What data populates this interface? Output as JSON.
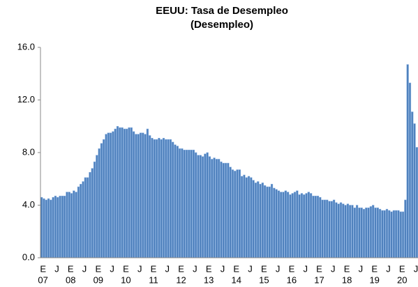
{
  "chart_data": {
    "type": "bar",
    "title": "EEUU: Tasa de Desempleo",
    "subtitle": "(Desempleo)",
    "categories": [
      "E",
      null,
      null,
      null,
      null,
      null,
      "J",
      null,
      null,
      null,
      null,
      null,
      "E",
      null,
      null,
      null,
      null,
      null,
      "J",
      null,
      null,
      null,
      null,
      null,
      "E",
      null,
      null,
      null,
      null,
      null,
      "J",
      null,
      null,
      null,
      null,
      null,
      "E",
      null,
      null,
      null,
      null,
      null,
      "J",
      null,
      null,
      null,
      null,
      null,
      "E",
      null,
      null,
      null,
      null,
      null,
      "J",
      null,
      null,
      null,
      null,
      null,
      "E",
      null,
      null,
      null,
      null,
      null,
      "J",
      null,
      null,
      null,
      null,
      null,
      "E",
      null,
      null,
      null,
      null,
      null,
      "J",
      null,
      null,
      null,
      null,
      null,
      "E",
      null,
      null,
      null,
      null,
      null,
      "J",
      null,
      null,
      null,
      null,
      null,
      "E",
      null,
      null,
      null,
      null,
      null,
      "J",
      null,
      null,
      null,
      null,
      null,
      "E",
      null,
      null,
      null,
      null,
      null,
      "J",
      null,
      null,
      null,
      null,
      null,
      "E",
      null,
      null,
      null,
      null,
      null,
      "J",
      null,
      null,
      null,
      null,
      null,
      "E",
      null,
      null,
      null,
      null,
      null,
      "J",
      null,
      null,
      null,
      null,
      null,
      "E",
      null,
      null,
      null,
      null,
      null,
      "J",
      null,
      null,
      null,
      null,
      null,
      "E",
      null,
      null,
      null,
      null,
      null,
      "J",
      null
    ],
    "years": [
      "07",
      null,
      null,
      null,
      null,
      null,
      null,
      null,
      null,
      null,
      null,
      null,
      "08",
      null,
      null,
      null,
      null,
      null,
      null,
      null,
      null,
      null,
      null,
      null,
      "09",
      null,
      null,
      null,
      null,
      null,
      null,
      null,
      null,
      null,
      null,
      null,
      "10",
      null,
      null,
      null,
      null,
      null,
      null,
      null,
      null,
      null,
      null,
      null,
      "11",
      null,
      null,
      null,
      null,
      null,
      null,
      null,
      null,
      null,
      null,
      null,
      "12",
      null,
      null,
      null,
      null,
      null,
      null,
      null,
      null,
      null,
      null,
      null,
      "13",
      null,
      null,
      null,
      null,
      null,
      null,
      null,
      null,
      null,
      null,
      null,
      "14",
      null,
      null,
      null,
      null,
      null,
      null,
      null,
      null,
      null,
      null,
      null,
      "15",
      null,
      null,
      null,
      null,
      null,
      null,
      null,
      null,
      null,
      null,
      null,
      "16",
      null,
      null,
      null,
      null,
      null,
      null,
      null,
      null,
      null,
      null,
      null,
      "17",
      null,
      null,
      null,
      null,
      null,
      null,
      null,
      null,
      null,
      null,
      null,
      "18",
      null,
      null,
      null,
      null,
      null,
      null,
      null,
      null,
      null,
      null,
      null,
      "19",
      null,
      null,
      null,
      null,
      null,
      null,
      null,
      null,
      null,
      null,
      null,
      "20",
      null,
      null,
      null,
      null,
      null,
      null,
      null
    ],
    "values": [
      4.6,
      4.5,
      4.4,
      4.5,
      4.4,
      4.6,
      4.7,
      4.6,
      4.7,
      4.7,
      4.7,
      5.0,
      5.0,
      4.9,
      5.1,
      5.0,
      5.4,
      5.6,
      5.8,
      6.1,
      6.1,
      6.5,
      6.8,
      7.3,
      7.8,
      8.3,
      8.7,
      9.0,
      9.4,
      9.5,
      9.5,
      9.6,
      9.8,
      10.0,
      9.9,
      9.9,
      9.8,
      9.8,
      9.9,
      9.9,
      9.6,
      9.4,
      9.4,
      9.5,
      9.5,
      9.4,
      9.8,
      9.3,
      9.1,
      9.0,
      9.0,
      9.1,
      9.0,
      9.1,
      9.0,
      9.0,
      9.0,
      8.8,
      8.6,
      8.5,
      8.3,
      8.3,
      8.2,
      8.2,
      8.2,
      8.2,
      8.2,
      8.0,
      7.8,
      7.8,
      7.7,
      7.9,
      8.0,
      7.7,
      7.5,
      7.6,
      7.5,
      7.5,
      7.3,
      7.2,
      7.2,
      7.2,
      6.9,
      6.7,
      6.6,
      6.7,
      6.7,
      6.2,
      6.3,
      6.1,
      6.2,
      6.1,
      5.9,
      5.7,
      5.8,
      5.6,
      5.7,
      5.5,
      5.4,
      5.4,
      5.6,
      5.3,
      5.2,
      5.1,
      5.0,
      5.0,
      5.1,
      5.0,
      4.8,
      4.9,
      5.0,
      5.1,
      4.8,
      4.9,
      4.8,
      4.9,
      5.0,
      4.9,
      4.7,
      4.7,
      4.7,
      4.6,
      4.4,
      4.4,
      4.4,
      4.3,
      4.3,
      4.4,
      4.2,
      4.1,
      4.2,
      4.1,
      4.0,
      4.1,
      4.0,
      4.0,
      3.8,
      4.0,
      3.8,
      3.8,
      3.7,
      3.8,
      3.8,
      3.9,
      4.0,
      3.8,
      3.8,
      3.7,
      3.6,
      3.6,
      3.7,
      3.6,
      3.5,
      3.6,
      3.6,
      3.6,
      3.5,
      3.5,
      4.4,
      14.7,
      13.3,
      11.1,
      10.2,
      8.4
    ],
    "color": "#4f81bd",
    "ylim": [
      0,
      16
    ],
    "yticks": [
      {
        "value": 0,
        "label": "0.0"
      },
      {
        "value": 4,
        "label": "4.0"
      },
      {
        "value": 8,
        "label": "8.0"
      },
      {
        "value": 12,
        "label": "12.0"
      },
      {
        "value": 16,
        "label": "16.0"
      }
    ],
    "grid": false
  }
}
